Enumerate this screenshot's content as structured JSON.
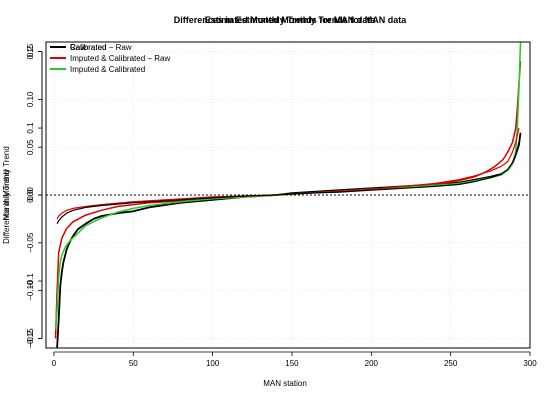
{
  "chart_data": {
    "type": "line",
    "titles": [
      "Differences in Estimated Monthly Trends for MAN data",
      "Estimated Monthly Trends for MAN data"
    ],
    "xlabel": "MAN station",
    "ylabels": [
      "Difference in Monthly Trend",
      "Monthly Trend"
    ],
    "xlim": [
      -5,
      300
    ],
    "ylim": [
      -0.16,
      0.16
    ],
    "xticks": [
      {
        "value": 0,
        "label": "0"
      },
      {
        "value": 50,
        "label": "50"
      },
      {
        "value": 100,
        "label": "100"
      },
      {
        "value": 150,
        "label": "150"
      },
      {
        "value": 200,
        "label": "200"
      },
      {
        "value": 250,
        "label": "250"
      },
      {
        "value": 300,
        "label": "300"
      }
    ],
    "yticks_left": [
      {
        "value": -0.15,
        "label": "−0.15"
      },
      {
        "value": -0.1,
        "label": "−0.10"
      },
      {
        "value": -0.05,
        "label": "−0.05"
      },
      {
        "value": 0.0,
        "label": "0.00"
      },
      {
        "value": 0.05,
        "label": "0.05"
      },
      {
        "value": 0.1,
        "label": "0.10"
      },
      {
        "value": 0.15,
        "label": "0.15"
      }
    ],
    "yticks_right": [
      {
        "value": -0.15,
        "label": "−0.2"
      },
      {
        "value": -0.09,
        "label": "−0.1"
      },
      {
        "value": 0.0,
        "label": "0.0"
      },
      {
        "value": 0.07,
        "label": "0.1"
      },
      {
        "value": 0.15,
        "label": "0.2"
      }
    ],
    "reference_line": {
      "y": 0,
      "style": "dotted"
    },
    "grid": true,
    "legend_position": "top-left",
    "legend_entries": [
      {
        "label": "Raw",
        "color": "#000000"
      },
      {
        "label": "Calibrated",
        "color": "#dd0000"
      },
      {
        "label": "Imputed & Calibrated",
        "color": "#22cc22"
      },
      {
        "label": "Calibrated − Raw",
        "color": "#000000"
      },
      {
        "label": "Imputed & Calibrated − Raw",
        "color": "#dd0000"
      }
    ],
    "series": [
      {
        "color": "#000000",
        "width": 1.8,
        "x": [
          2,
          3,
          4,
          5,
          6,
          8,
          10,
          12,
          15,
          20,
          25,
          30,
          40,
          50,
          60,
          80,
          100,
          120,
          140,
          150,
          160,
          180,
          200,
          220,
          240,
          255,
          265,
          275,
          282,
          286,
          289,
          291,
          293,
          294
        ],
        "y": [
          -0.16,
          -0.13,
          -0.095,
          -0.08,
          -0.07,
          -0.057,
          -0.049,
          -0.043,
          -0.036,
          -0.03,
          -0.025,
          -0.022,
          -0.019,
          -0.017,
          -0.013,
          -0.008,
          -0.005,
          -0.002,
          0.0,
          0.002,
          0.003,
          0.005,
          0.007,
          0.009,
          0.011,
          0.013,
          0.016,
          0.019,
          0.022,
          0.026,
          0.033,
          0.042,
          0.052,
          0.065
        ]
      },
      {
        "color": "#dd0000",
        "width": 1.5,
        "x": [
          1,
          2,
          3,
          5,
          8,
          12,
          20,
          30,
          40,
          50,
          60,
          80,
          100,
          120,
          140,
          150,
          160,
          180,
          200,
          220,
          240,
          255,
          265,
          272,
          278,
          283,
          286,
          289,
          291,
          292,
          293,
          294
        ],
        "y": [
          -0.15,
          -0.1,
          -0.06,
          -0.045,
          -0.035,
          -0.028,
          -0.021,
          -0.016,
          -0.012,
          -0.01,
          -0.008,
          -0.006,
          -0.004,
          -0.002,
          0.0,
          0.001,
          0.002,
          0.004,
          0.006,
          0.008,
          0.011,
          0.015,
          0.019,
          0.024,
          0.03,
          0.037,
          0.045,
          0.055,
          0.07,
          0.09,
          0.115,
          0.14
        ]
      },
      {
        "color": "#22cc22",
        "width": 1.5,
        "x": [
          1,
          2,
          3,
          4,
          5,
          7,
          10,
          15,
          20,
          30,
          40,
          50,
          60,
          80,
          100,
          120,
          140,
          150,
          160,
          180,
          200,
          220,
          240,
          255,
          265,
          275,
          282,
          286,
          289,
          291,
          292,
          293,
          294
        ],
        "y": [
          -0.14,
          -0.12,
          -0.085,
          -0.07,
          -0.063,
          -0.055,
          -0.048,
          -0.04,
          -0.032,
          -0.024,
          -0.018,
          -0.014,
          -0.011,
          -0.007,
          -0.004,
          -0.002,
          0.0,
          0.001,
          0.002,
          0.004,
          0.006,
          0.008,
          0.01,
          0.012,
          0.015,
          0.018,
          0.021,
          0.026,
          0.033,
          0.045,
          0.07,
          0.11,
          0.16
        ]
      },
      {
        "color": "#dd0000",
        "width": 1.2,
        "x": [
          2,
          3,
          5,
          8,
          12,
          20,
          30,
          50,
          80,
          100,
          120,
          140,
          150,
          160,
          180,
          200,
          220,
          240,
          255,
          265,
          275,
          282,
          286,
          289,
          291,
          293
        ],
        "y": [
          -0.025,
          -0.022,
          -0.019,
          -0.016,
          -0.014,
          -0.012,
          -0.01,
          -0.007,
          -0.004,
          -0.002,
          -0.001,
          0.0,
          0.001,
          0.002,
          0.004,
          0.006,
          0.009,
          0.012,
          0.016,
          0.02,
          0.025,
          0.03,
          0.035,
          0.045,
          0.055,
          0.07
        ]
      },
      {
        "color": "#000000",
        "width": 1.2,
        "x": [
          2,
          3,
          5,
          8,
          12,
          20,
          30,
          50,
          80,
          100,
          120,
          140,
          150,
          160,
          180,
          200,
          220,
          240,
          255,
          265,
          275,
          282,
          286,
          289,
          291,
          293
        ],
        "y": [
          -0.03,
          -0.027,
          -0.023,
          -0.019,
          -0.016,
          -0.013,
          -0.011,
          -0.008,
          -0.005,
          -0.003,
          -0.001,
          0.0,
          0.001,
          0.002,
          0.003,
          0.005,
          0.007,
          0.009,
          0.011,
          0.014,
          0.018,
          0.022,
          0.027,
          0.034,
          0.042,
          0.055
        ]
      }
    ]
  }
}
